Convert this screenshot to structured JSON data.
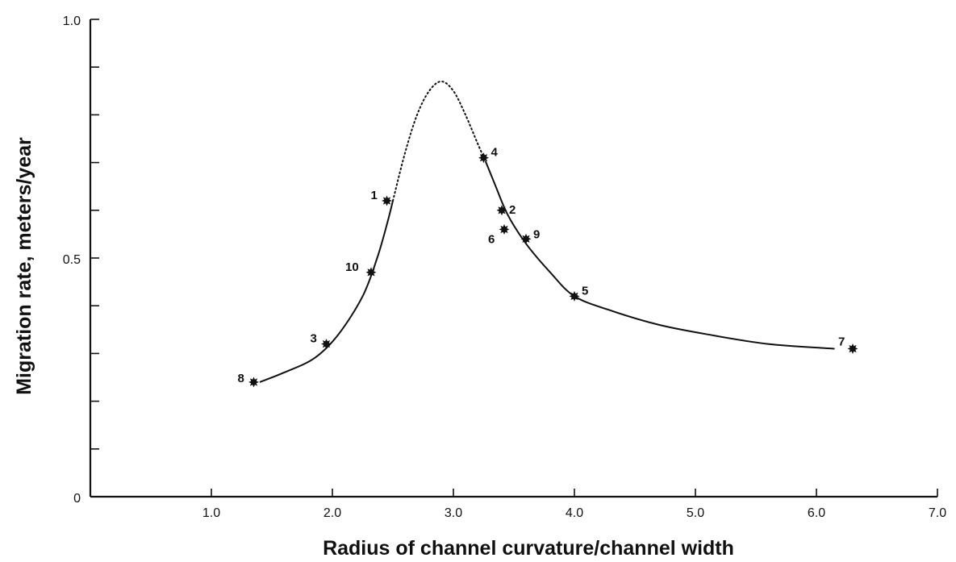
{
  "chart_data": {
    "type": "scatter",
    "title": "",
    "xlabel": "Radius of channel curvature/channel width",
    "ylabel": "Migration rate, meters/year",
    "xlim": [
      0,
      7.0
    ],
    "ylim": [
      0,
      1.0
    ],
    "x_ticks": [
      1.0,
      2.0,
      3.0,
      4.0,
      5.0,
      6.0,
      7.0
    ],
    "x_tick_labels": [
      "1.0",
      "2.0",
      "3.0",
      "4.0",
      "5.0",
      "6.0",
      "7.0"
    ],
    "y_ticks": [
      0,
      0.1,
      0.2,
      0.3,
      0.4,
      0.5,
      0.6,
      0.7,
      0.8,
      0.9,
      1.0
    ],
    "y_tick_labels": [
      "0",
      "",
      "",
      "",
      "",
      "0.5",
      "",
      "",
      "",
      "",
      "1.0"
    ],
    "grid": false,
    "points": [
      {
        "label": "1",
        "x": 2.45,
        "y": 0.62
      },
      {
        "label": "2",
        "x": 3.4,
        "y": 0.6
      },
      {
        "label": "3",
        "x": 1.95,
        "y": 0.32
      },
      {
        "label": "4",
        "x": 3.25,
        "y": 0.71
      },
      {
        "label": "5",
        "x": 4.0,
        "y": 0.42
      },
      {
        "label": "6",
        "x": 3.42,
        "y": 0.56
      },
      {
        "label": "7",
        "x": 6.3,
        "y": 0.31
      },
      {
        "label": "8",
        "x": 1.35,
        "y": 0.24
      },
      {
        "label": "9",
        "x": 3.6,
        "y": 0.54
      },
      {
        "label": "10",
        "x": 2.32,
        "y": 0.47
      }
    ],
    "fitted_curve": {
      "solid_left": [
        [
          1.4,
          0.24
        ],
        [
          1.6,
          0.26
        ],
        [
          1.85,
          0.29
        ],
        [
          2.05,
          0.34
        ],
        [
          2.25,
          0.42
        ],
        [
          2.37,
          0.5
        ],
        [
          2.45,
          0.57
        ],
        [
          2.5,
          0.62
        ]
      ],
      "dotted_peak": [
        [
          2.5,
          0.62
        ],
        [
          2.6,
          0.72
        ],
        [
          2.7,
          0.8
        ],
        [
          2.8,
          0.85
        ],
        [
          2.9,
          0.87
        ],
        [
          3.0,
          0.85
        ],
        [
          3.1,
          0.8
        ],
        [
          3.2,
          0.74
        ],
        [
          3.27,
          0.7
        ]
      ],
      "solid_right": [
        [
          3.27,
          0.7
        ],
        [
          3.35,
          0.65
        ],
        [
          3.45,
          0.59
        ],
        [
          3.6,
          0.53
        ],
        [
          3.8,
          0.47
        ],
        [
          4.0,
          0.42
        ],
        [
          4.3,
          0.39
        ],
        [
          4.7,
          0.36
        ],
        [
          5.1,
          0.34
        ],
        [
          5.6,
          0.32
        ],
        [
          6.15,
          0.31
        ]
      ]
    }
  }
}
